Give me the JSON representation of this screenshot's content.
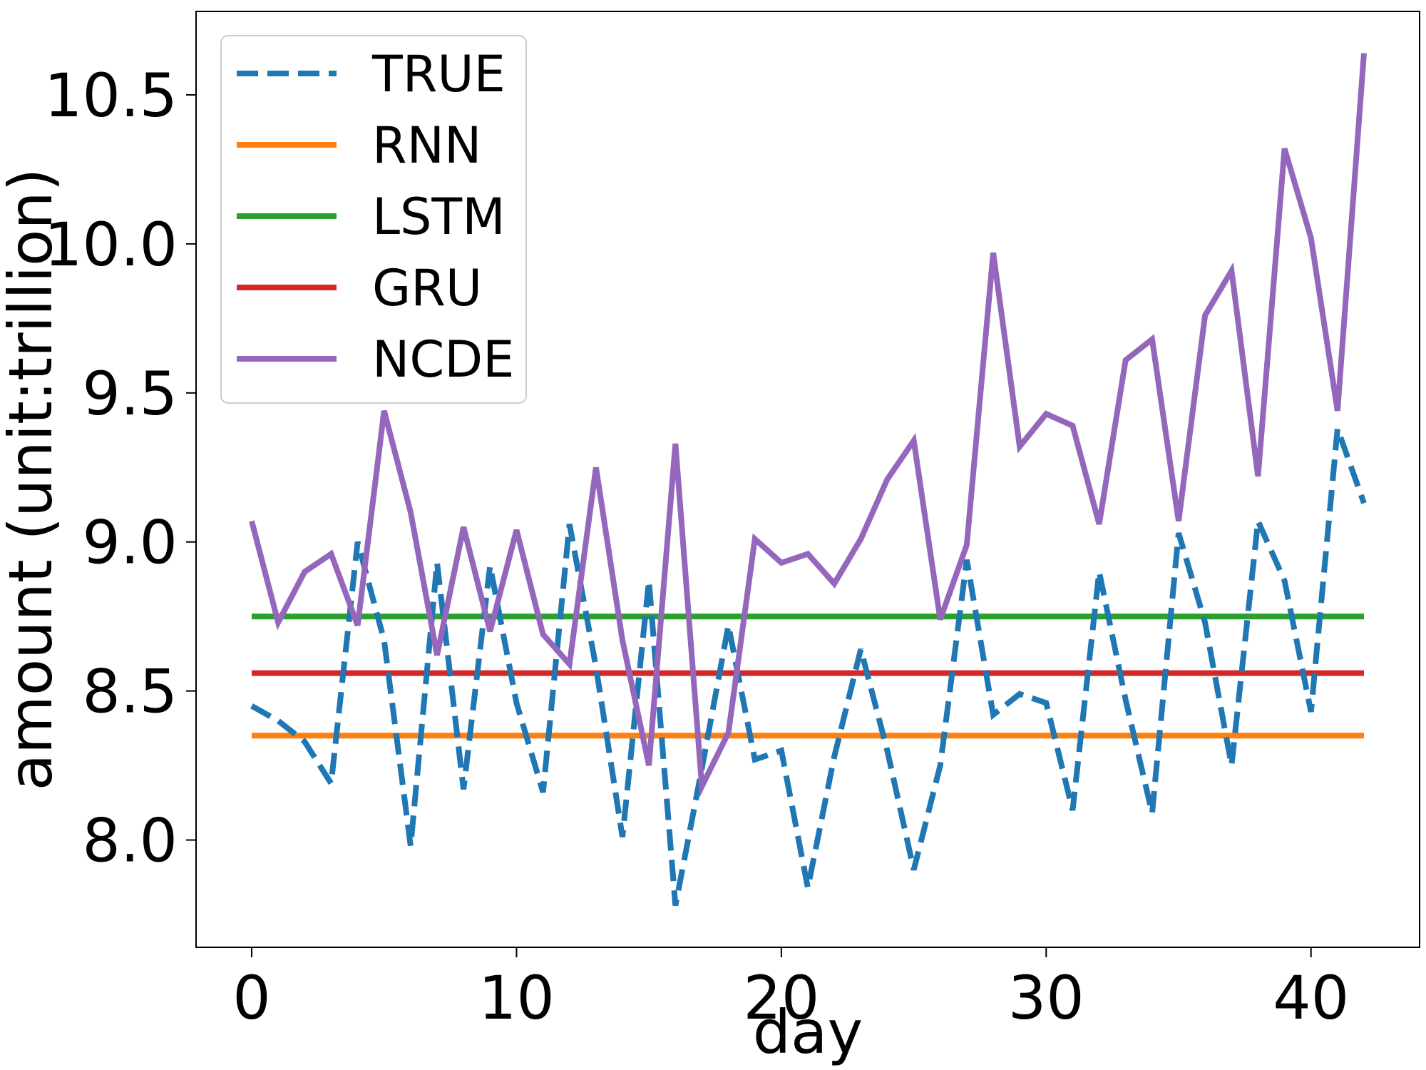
{
  "chart_data": {
    "type": "line",
    "title": "",
    "xlabel": "day",
    "ylabel": "amount (unit:trillion)",
    "xlim": [
      -2.1,
      44.1
    ],
    "ylim": [
      7.64,
      10.78
    ],
    "xticks": [
      0,
      10,
      20,
      30,
      40
    ],
    "yticks": [
      8.0,
      8.5,
      9.0,
      9.5,
      10.0,
      10.5
    ],
    "xtick_labels": [
      "0",
      "10",
      "20",
      "30",
      "40"
    ],
    "ytick_labels": [
      "8.0",
      "8.5",
      "9.0",
      "9.5",
      "10.0",
      "10.5"
    ],
    "grid": false,
    "legend_position": "top-left",
    "x": [
      0,
      1,
      2,
      3,
      4,
      5,
      6,
      7,
      8,
      9,
      10,
      11,
      12,
      13,
      14,
      15,
      16,
      17,
      18,
      19,
      20,
      21,
      22,
      23,
      24,
      25,
      26,
      27,
      28,
      29,
      30,
      31,
      32,
      33,
      34,
      35,
      36,
      37,
      38,
      39,
      40,
      41,
      42
    ],
    "series": [
      {
        "name": "TRUE",
        "color": "#1f77b4",
        "style": "dashed",
        "values": [
          8.45,
          8.4,
          8.33,
          8.19,
          9.0,
          8.67,
          7.98,
          8.93,
          8.17,
          8.92,
          8.46,
          8.16,
          9.06,
          8.58,
          8.01,
          8.87,
          7.78,
          8.24,
          8.72,
          8.27,
          8.3,
          7.84,
          8.28,
          8.64,
          8.3,
          7.9,
          8.25,
          8.94,
          8.42,
          8.49,
          8.46,
          8.1,
          8.9,
          8.47,
          8.09,
          9.03,
          8.73,
          8.25,
          9.07,
          8.87,
          8.43,
          9.38,
          9.13
        ]
      },
      {
        "name": "RNN",
        "color": "#ff7f0e",
        "style": "solid",
        "values": [
          8.35,
          8.35,
          8.35,
          8.35,
          8.35,
          8.35,
          8.35,
          8.35,
          8.35,
          8.35,
          8.35,
          8.35,
          8.35,
          8.35,
          8.35,
          8.35,
          8.35,
          8.35,
          8.35,
          8.35,
          8.35,
          8.35,
          8.35,
          8.35,
          8.35,
          8.35,
          8.35,
          8.35,
          8.35,
          8.35,
          8.35,
          8.35,
          8.35,
          8.35,
          8.35,
          8.35,
          8.35,
          8.35,
          8.35,
          8.35,
          8.35,
          8.35,
          8.35
        ]
      },
      {
        "name": "LSTM",
        "color": "#2ca02c",
        "style": "solid",
        "values": [
          8.75,
          8.75,
          8.75,
          8.75,
          8.75,
          8.75,
          8.75,
          8.75,
          8.75,
          8.75,
          8.75,
          8.75,
          8.75,
          8.75,
          8.75,
          8.75,
          8.75,
          8.75,
          8.75,
          8.75,
          8.75,
          8.75,
          8.75,
          8.75,
          8.75,
          8.75,
          8.75,
          8.75,
          8.75,
          8.75,
          8.75,
          8.75,
          8.75,
          8.75,
          8.75,
          8.75,
          8.75,
          8.75,
          8.75,
          8.75,
          8.75,
          8.75,
          8.75
        ]
      },
      {
        "name": "GRU",
        "color": "#d62728",
        "style": "solid",
        "values": [
          8.56,
          8.56,
          8.56,
          8.56,
          8.56,
          8.56,
          8.56,
          8.56,
          8.56,
          8.56,
          8.56,
          8.56,
          8.56,
          8.56,
          8.56,
          8.56,
          8.56,
          8.56,
          8.56,
          8.56,
          8.56,
          8.56,
          8.56,
          8.56,
          8.56,
          8.56,
          8.56,
          8.56,
          8.56,
          8.56,
          8.56,
          8.56,
          8.56,
          8.56,
          8.56,
          8.56,
          8.56,
          8.56,
          8.56,
          8.56,
          8.56,
          8.56,
          8.56
        ]
      },
      {
        "name": "NCDE",
        "color": "#9467bd",
        "style": "solid",
        "values": [
          9.07,
          8.73,
          8.9,
          8.96,
          8.72,
          9.44,
          9.1,
          8.62,
          9.05,
          8.7,
          9.04,
          8.69,
          8.59,
          9.25,
          8.67,
          8.25,
          9.33,
          8.18,
          8.36,
          9.01,
          8.93,
          8.96,
          8.86,
          9.01,
          9.21,
          9.34,
          8.74,
          8.99,
          9.97,
          9.32,
          9.43,
          9.39,
          9.06,
          9.61,
          9.68,
          9.07,
          9.76,
          9.91,
          9.22,
          10.32,
          10.02,
          9.44,
          10.64
        ]
      }
    ]
  }
}
